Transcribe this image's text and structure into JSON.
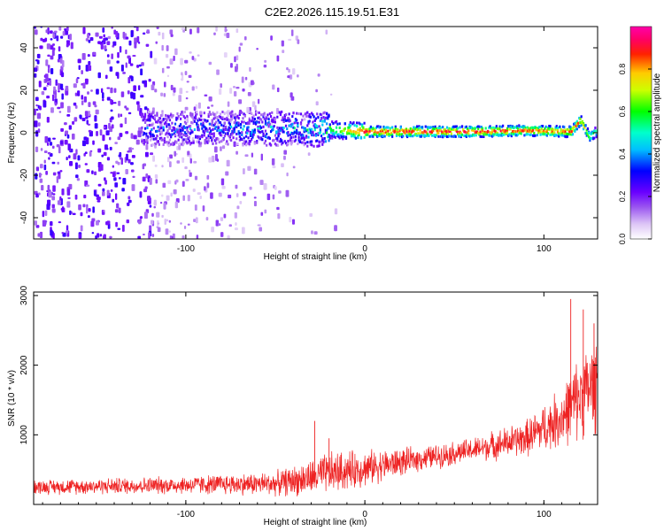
{
  "figure": {
    "title": "C2E2.2026.115.19.51.E31"
  },
  "chart_data": [
    {
      "type": "heatmap",
      "title": "C2E2.2026.115.19.51.E31",
      "xlabel": "Height of straight line (km)",
      "ylabel": "Frequency (Hz)",
      "xlim": [
        -185,
        130
      ],
      "ylim": [
        -50,
        50
      ],
      "xticks": [
        -100,
        0,
        100
      ],
      "yticks": [
        -40,
        -20,
        0,
        20,
        40
      ],
      "colorbar": {
        "label": "Normalized spectral amplitude",
        "range": [
          0,
          1
        ],
        "ticks": [
          "0.0",
          "0.2",
          "0.4",
          "0.6",
          "0.8"
        ],
        "tick_values": [
          0.0,
          0.2,
          0.4,
          0.6,
          0.8
        ]
      },
      "ridge": {
        "description_points_x": [
          -120,
          -80,
          -50,
          -30,
          -20,
          0,
          20,
          60,
          90,
          115,
          120,
          125,
          130
        ],
        "center_freq_hz": [
          2,
          2,
          2,
          1.5,
          1.5,
          0.5,
          0.5,
          0.5,
          1,
          0.5,
          6,
          -2,
          1
        ],
        "peak_amplitude": [
          0.35,
          0.4,
          0.45,
          0.5,
          0.6,
          0.95,
          0.95,
          0.95,
          0.9,
          0.9,
          0.85,
          0.7,
          0.6
        ]
      }
    },
    {
      "type": "line",
      "xlabel": "Height of straight line (km)",
      "ylabel": "SNR (10 * v/v)",
      "xlim": [
        -185,
        130
      ],
      "ylim": [
        0,
        3050
      ],
      "xticks": [
        -100,
        0,
        100
      ],
      "yticks": [
        1000,
        2000,
        3000
      ],
      "series": [
        {
          "name": "SNR",
          "color": "#ee2222",
          "trend_x": [
            -185,
            -100,
            -50,
            -30,
            -20,
            0,
            30,
            60,
            90,
            110,
            120,
            130
          ],
          "trend_y": [
            250,
            280,
            300,
            380,
            450,
            520,
            650,
            780,
            950,
            1250,
            1550,
            1750
          ],
          "spread": [
            120,
            150,
            200,
            300,
            350,
            300,
            200,
            200,
            300,
            500,
            700,
            800
          ],
          "peak_points": [
            {
              "x": -28,
              "y": 1200
            },
            {
              "x": -20,
              "y": 950
            },
            {
              "x": 115,
              "y": 2950
            },
            {
              "x": 122,
              "y": 2800
            },
            {
              "x": 128,
              "y": 2600
            }
          ]
        }
      ]
    }
  ]
}
